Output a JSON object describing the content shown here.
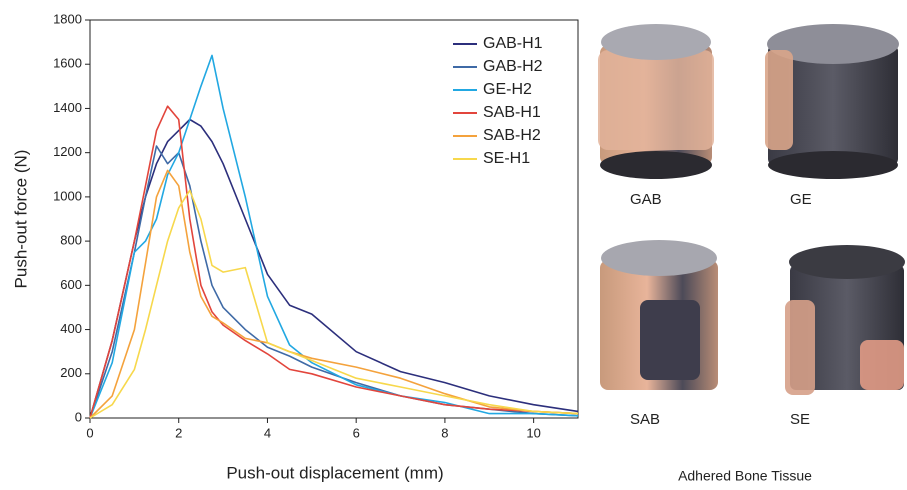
{
  "chart_data": {
    "type": "line",
    "xlabel": "Push-out displacement (mm)",
    "ylabel": "Push-out force (N)",
    "x": [
      0,
      0.5,
      1,
      1.25,
      1.5,
      1.75,
      2,
      2.25,
      2.5,
      2.75,
      3,
      3.5,
      4,
      4.5,
      5,
      6,
      7,
      8,
      9,
      10,
      11
    ],
    "series": [
      {
        "name": "GAB-H1",
        "color": "#2c2f7c",
        "values": [
          0,
          350,
          800,
          1000,
          1150,
          1250,
          1300,
          1350,
          1320,
          1250,
          1150,
          900,
          650,
          510,
          470,
          300,
          210,
          160,
          100,
          60,
          30
        ]
      },
      {
        "name": "GAB-H2",
        "color": "#3f6aa6",
        "values": [
          0,
          300,
          750,
          1000,
          1230,
          1150,
          1200,
          1050,
          800,
          600,
          500,
          400,
          320,
          280,
          230,
          160,
          100,
          60,
          40,
          20,
          10
        ]
      },
      {
        "name": "GE-H2",
        "color": "#22a8e2",
        "values": [
          0,
          250,
          750,
          800,
          900,
          1100,
          1200,
          1350,
          1500,
          1640,
          1400,
          1000,
          550,
          330,
          250,
          150,
          100,
          70,
          20,
          20,
          10
        ]
      },
      {
        "name": "SAB-H1",
        "color": "#e2453c",
        "values": [
          0,
          350,
          800,
          1050,
          1300,
          1410,
          1350,
          900,
          600,
          480,
          420,
          350,
          290,
          220,
          200,
          140,
          100,
          60,
          40,
          30,
          20
        ]
      },
      {
        "name": "SAB-H2",
        "color": "#f4a23c",
        "values": [
          0,
          100,
          400,
          700,
          1000,
          1120,
          1050,
          750,
          550,
          460,
          430,
          360,
          340,
          300,
          270,
          230,
          180,
          110,
          50,
          30,
          20
        ]
      },
      {
        "name": "SE-H1",
        "color": "#f7d84c",
        "values": [
          0,
          60,
          220,
          400,
          600,
          800,
          950,
          1030,
          900,
          690,
          660,
          680,
          340,
          300,
          260,
          180,
          140,
          100,
          60,
          30,
          20
        ]
      }
    ],
    "xlim": [
      0,
      11
    ],
    "xticks": [
      0,
      2,
      4,
      6,
      8,
      10
    ],
    "ylim": [
      0,
      1800
    ],
    "yticks": [
      0,
      200,
      400,
      600,
      800,
      1000,
      1200,
      1400,
      1600,
      1800
    ],
    "legend": "upper-right"
  },
  "figure": {
    "panels": [
      "GAB",
      "GE",
      "SAB",
      "SE"
    ],
    "caption": "Adhered Bone Tissue"
  }
}
